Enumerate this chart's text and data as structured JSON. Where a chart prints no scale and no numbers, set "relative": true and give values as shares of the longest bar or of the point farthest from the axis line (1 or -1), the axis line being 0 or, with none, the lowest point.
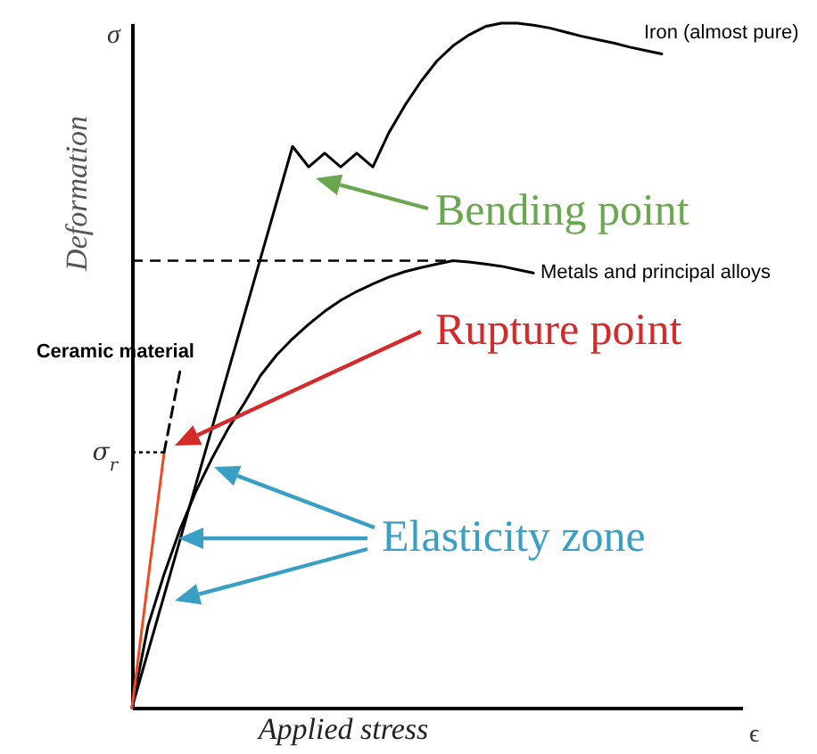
{
  "chart_data": {
    "type": "line",
    "relative": true,
    "xlabel": "Applied stress",
    "ylabel": "Deformation",
    "categories": [
      null,
      null,
      null,
      null,
      null,
      null,
      null,
      null,
      null,
      null,
      null,
      null,
      null,
      null,
      null,
      null,
      null,
      null,
      null,
      null,
      null,
      null,
      null,
      null,
      null,
      null,
      null,
      null,
      null,
      null,
      null,
      null,
      null,
      null,
      null,
      null,
      null,
      null,
      null
    ],
    "series": [
      {
        "name": "Iron (almost pure)",
        "color": "#000000",
        "line_style": "solid",
        "values": [
          0,
          0.082,
          0.164,
          0.246,
          0.328,
          0.41,
          0.492,
          0.574,
          0.656,
          0.738,
          0.82,
          0.79,
          0.81,
          0.79,
          0.81,
          0.79,
          0.84,
          0.88,
          0.915,
          0.945,
          0.967,
          0.983,
          0.995,
          1,
          1,
          0.997,
          0.993,
          0.987,
          0.981,
          0.976,
          0.971,
          0.965,
          0.96,
          0.955,
          null,
          null,
          null,
          null,
          null
        ]
      },
      {
        "name": "Metals and principal alloys",
        "color": "#000000",
        "line_style": "solid",
        "values": [
          0,
          0.12,
          0.195,
          0.261,
          0.317,
          0.365,
          0.408,
          0.445,
          0.485,
          0.515,
          0.539,
          0.56,
          0.579,
          0.595,
          0.608,
          0.619,
          0.629,
          0.637,
          0.643,
          0.648,
          0.653,
          0.651,
          0.648,
          0.645,
          0.64,
          0.635,
          null,
          null,
          null,
          null,
          null,
          null,
          null,
          null,
          null,
          null,
          null,
          null,
          null
        ]
      },
      {
        "color": "#f04a23",
        "line_style": "solid",
        "values": [
          0,
          0.187,
          0.373,
          null,
          null,
          null,
          null,
          null,
          null,
          null,
          null,
          null,
          null,
          null,
          null,
          null,
          null,
          null,
          null,
          null,
          null,
          null,
          null,
          null,
          null,
          null,
          null,
          null,
          null,
          null,
          null,
          null,
          null,
          null,
          null,
          null,
          null,
          null,
          null
        ]
      },
      {
        "name": "Ceramic material",
        "color": "#000000",
        "line_style": "dashed",
        "values": [
          null,
          null,
          0.373,
          0.493,
          null,
          null,
          null,
          null,
          null,
          null,
          null,
          null,
          null,
          null,
          null,
          null,
          null,
          null,
          null,
          null,
          null,
          null,
          null,
          null,
          null,
          null,
          null,
          null,
          null,
          null,
          null,
          null,
          null,
          null,
          null,
          null,
          null,
          null,
          null
        ]
      }
    ],
    "ref_lines": [
      {
        "axis": "y",
        "value": 0.653,
        "label": null,
        "line_style": "dashed",
        "color": "#000000"
      },
      {
        "axis": "y",
        "value": 0.373,
        "label": "σ$_{r}$",
        "line_style": "dotted",
        "color": "#000000"
      }
    ],
    "annotations": [
      "Bending point",
      "Rupture point",
      "Elasticity zone",
      "σ",
      "ϵ"
    ],
    "marker": "none",
    "grid": false
  }
}
